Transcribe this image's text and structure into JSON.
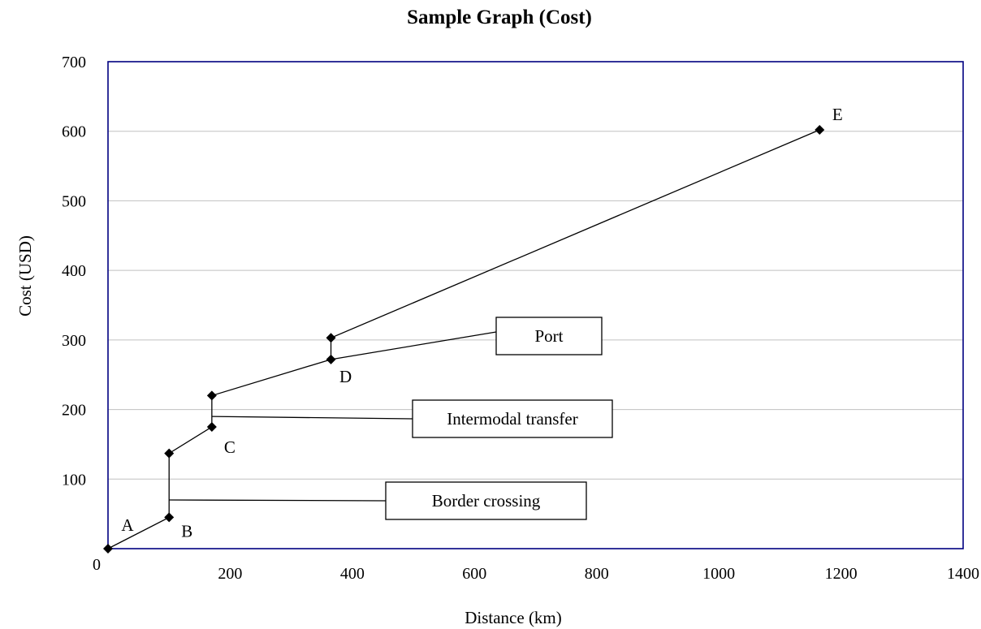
{
  "chart_data": {
    "type": "line",
    "title": "Sample Graph (Cost)",
    "xlabel": "Distance (km)",
    "ylabel": "Cost (USD)",
    "xlim": [
      0,
      1400
    ],
    "ylim": [
      0,
      700
    ],
    "x_ticks": [
      "0",
      "200",
      "400",
      "600",
      "800",
      "1000",
      "1200",
      "1400"
    ],
    "y_ticks": [
      "",
      "100",
      "200",
      "300",
      "400",
      "500",
      "600",
      "700"
    ],
    "grid": "horizontal",
    "legend": "none",
    "series": [
      {
        "points": [
          {
            "x": 0,
            "y": 0
          },
          {
            "x": 100,
            "y": 45
          },
          {
            "x": 100,
            "y": 137
          },
          {
            "x": 170,
            "y": 175
          },
          {
            "x": 170,
            "y": 220
          },
          {
            "x": 365,
            "y": 272
          },
          {
            "x": 365,
            "y": 303
          },
          {
            "x": 1165,
            "y": 602
          }
        ]
      }
    ],
    "point_labels": [
      {
        "text": "A",
        "x": 0,
        "y": 0
      },
      {
        "text": "B",
        "x": 100,
        "y": 45
      },
      {
        "text": "C",
        "x": 170,
        "y": 175
      },
      {
        "text": "D",
        "x": 365,
        "y": 272
      },
      {
        "text": "E",
        "x": 1165,
        "y": 602
      }
    ],
    "annotations": [
      {
        "text": "Border crossing",
        "target": {
          "x": 100,
          "y": 70
        }
      },
      {
        "text": "Intermodal transfer",
        "target": {
          "x": 170,
          "y": 190
        }
      },
      {
        "text": "Port",
        "target": {
          "x": 365,
          "y": 272
        }
      }
    ],
    "colors": {
      "frame": "#000080",
      "grid": "#c0c0c0",
      "line": "#000000"
    }
  }
}
